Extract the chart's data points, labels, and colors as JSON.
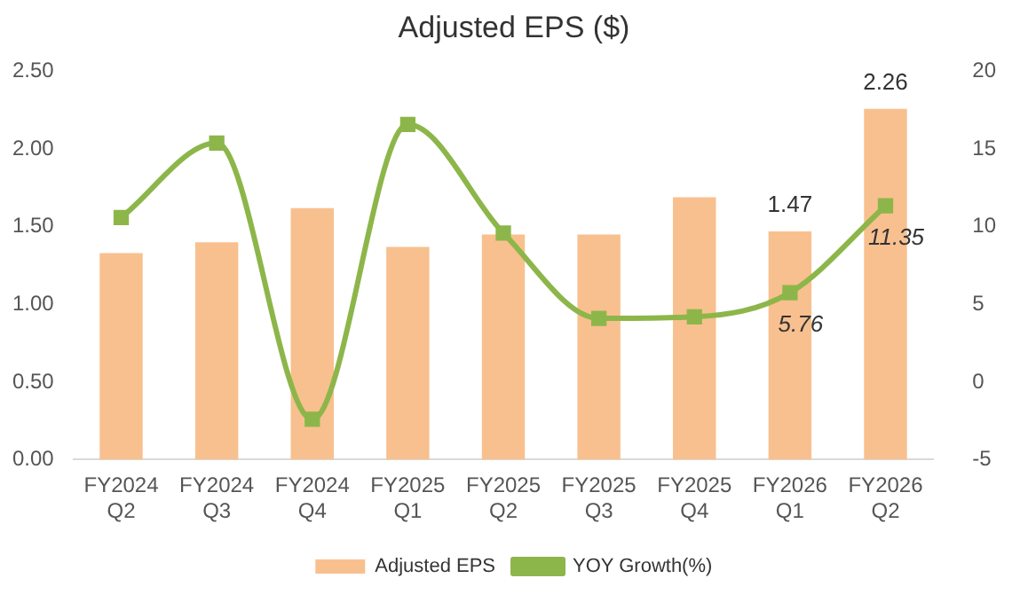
{
  "chart_data": {
    "type": "bar",
    "title": "Adjusted EPS ($)",
    "categories": [
      "FY2024 Q2",
      "FY2024 Q3",
      "FY2024 Q4",
      "FY2025 Q1",
      "FY2025 Q2",
      "FY2025 Q3",
      "FY2025 Q4",
      "FY2026 Q1",
      "FY2026 Q2"
    ],
    "series": [
      {
        "name": "Adjusted EPS",
        "color": "#f8c08f",
        "values": [
          1.33,
          1.4,
          1.62,
          1.37,
          1.45,
          1.45,
          1.69,
          1.47,
          2.26
        ],
        "value_labels": [
          null,
          null,
          null,
          null,
          null,
          null,
          null,
          "1.47",
          "2.26"
        ]
      },
      {
        "name": "YOY Growth(%)",
        "type": "line",
        "axis": "y2",
        "color": "#8db64a",
        "marker": "square",
        "values": [
          10.6,
          15.4,
          -2.4,
          16.6,
          9.6,
          4.1,
          4.2,
          5.76,
          11.35
        ],
        "value_labels": [
          null,
          null,
          null,
          null,
          null,
          null,
          null,
          "5.76",
          "11.35"
        ]
      }
    ],
    "ylim": [
      0,
      2.5
    ],
    "yticks": [
      {
        "value": 0,
        "label": "0.00"
      },
      {
        "value": 0.5,
        "label": "0.50"
      },
      {
        "value": 1,
        "label": "1.00"
      },
      {
        "value": 1.5,
        "label": "1.50"
      },
      {
        "value": 2,
        "label": "2.00"
      },
      {
        "value": 2.5,
        "label": "2.50"
      }
    ],
    "y2lim": [
      -5,
      20
    ],
    "y2ticks": [
      -5,
      0,
      5,
      10,
      15,
      20
    ],
    "grid": false,
    "legend": "bottom"
  }
}
